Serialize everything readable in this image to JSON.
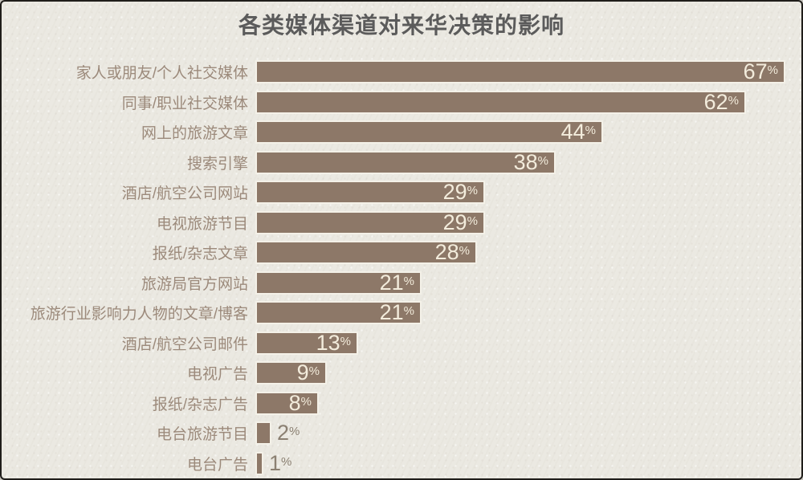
{
  "chart_data": {
    "type": "bar",
    "orientation": "horizontal",
    "title": "各类媒体渠道对来华决策的影响",
    "categories": [
      "家人或朋友/个人社交媒体",
      "同事/职业社交媒体",
      "网上的旅游文章",
      "搜索引擎",
      "酒店/航空公司网站",
      "电视旅游节目",
      "报纸/杂志文章",
      "旅游局官方网站",
      "旅游行业影响力人物的文章/博客",
      "酒店/航空公司邮件",
      "电视广告",
      "报纸/杂志广告",
      "电台旅游节目",
      "电台广告"
    ],
    "values": [
      67,
      62,
      44,
      38,
      29,
      29,
      28,
      21,
      21,
      13,
      9,
      8,
      2,
      1
    ],
    "unit": "%",
    "xlabel": "",
    "ylabel": "",
    "xlim": [
      0,
      67
    ],
    "grid": false,
    "legend": "none",
    "value_labels": "inside bar end; outside for values below 5",
    "colors": {
      "bar_fill": "#8d7868",
      "bar_border": "#f4f1e8",
      "background": "#ebe9e2",
      "frame_border": "#1f1d1a",
      "title_text": "#5b5b5b",
      "category_text": "#9c8a7b",
      "value_text_inside": "#f3ecdc",
      "value_text_outside": "#8b8072"
    }
  }
}
